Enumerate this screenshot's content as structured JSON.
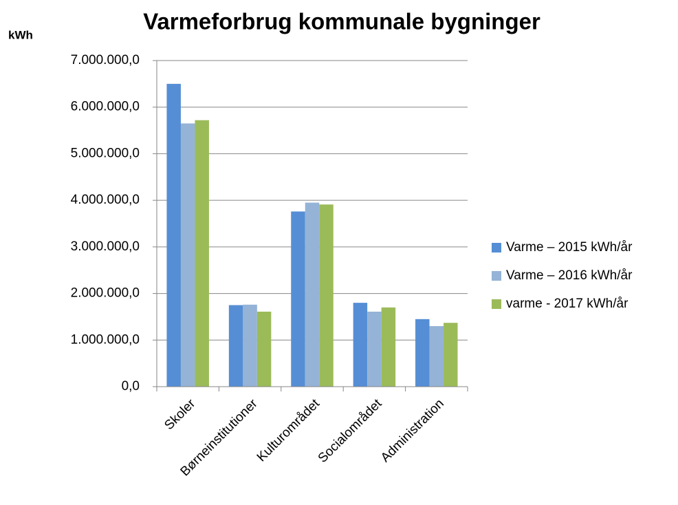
{
  "chart_data": {
    "type": "bar",
    "title": "Varmeforbrug kommunale bygninger",
    "ylabel": "kWh",
    "categories": [
      "Skoler",
      "Børneinstitutioner",
      "Kulturområdet",
      "Socialområdet",
      "Administration"
    ],
    "series": [
      {
        "name": "Varme – 2015 kWh/år",
        "color": "#558ed5",
        "values": [
          6500000,
          1750000,
          3760000,
          1800000,
          1450000
        ]
      },
      {
        "name": "Varme – 2016 kWh/år",
        "color": "#95b3d7",
        "values": [
          5650000,
          1760000,
          3950000,
          1610000,
          1300000
        ]
      },
      {
        "name": "varme - 2017 kWh/år",
        "color": "#9bbb59",
        "values": [
          5720000,
          1610000,
          3910000,
          1700000,
          1370000
        ]
      }
    ],
    "ylim": [
      0,
      7000000
    ],
    "yticks": [
      {
        "value": 0,
        "label": "0,0"
      },
      {
        "value": 1000000,
        "label": "1.000.000,0"
      },
      {
        "value": 2000000,
        "label": "2.000.000,0"
      },
      {
        "value": 3000000,
        "label": "3.000.000,0"
      },
      {
        "value": 4000000,
        "label": "4.000.000,0"
      },
      {
        "value": 5000000,
        "label": "5.000.000,0"
      },
      {
        "value": 6000000,
        "label": "6.000.000,0"
      },
      {
        "value": 7000000,
        "label": "7.000.000,0"
      }
    ],
    "grid": true,
    "legend": "right"
  }
}
